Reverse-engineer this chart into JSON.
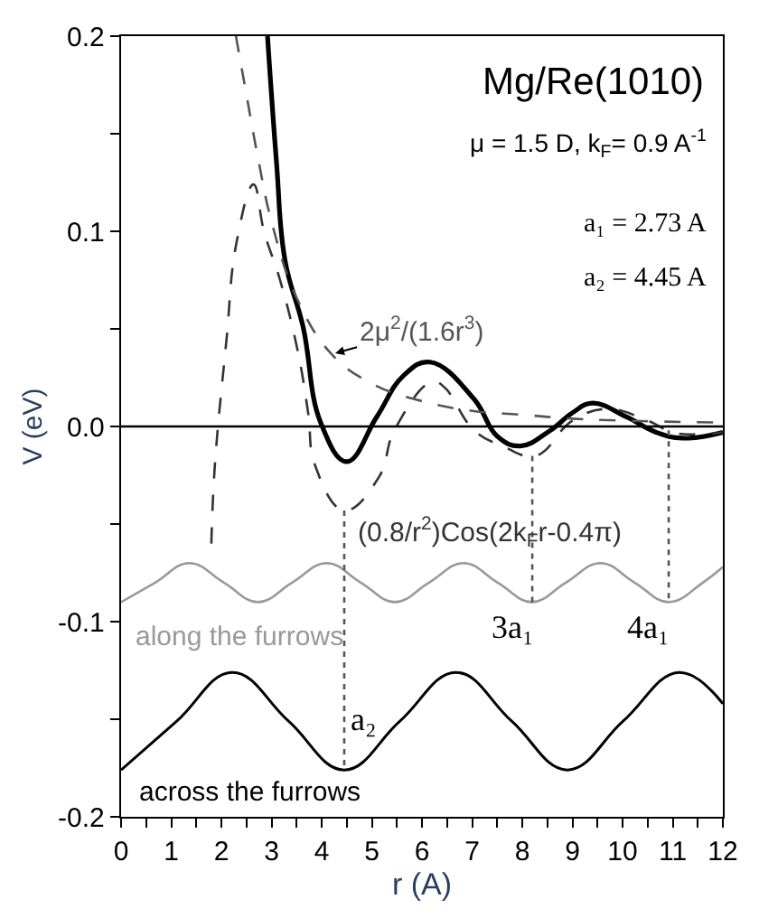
{
  "chart_data": {
    "type": "line",
    "title": "Mg/Re(1010)",
    "xlabel": "r (A)",
    "ylabel": "V (eV)",
    "xlim": [
      0,
      12
    ],
    "ylim": [
      -0.2,
      0.2
    ],
    "xticks": [
      0,
      {
        "value": 0.5,
        "label": null
      },
      1,
      {
        "value": 1.5,
        "label": null
      },
      2,
      {
        "value": 2.5,
        "label": null
      },
      3,
      {
        "value": 3.5,
        "label": null
      },
      4,
      {
        "value": 4.5,
        "label": null
      },
      5,
      {
        "value": 5.5,
        "label": null
      },
      6,
      {
        "value": 6.5,
        "label": null
      },
      7,
      {
        "value": 7.5,
        "label": null
      },
      8,
      {
        "value": 8.5,
        "label": null
      },
      9,
      {
        "value": 9.5,
        "label": null
      },
      10,
      {
        "value": 10.5,
        "label": null
      },
      11,
      {
        "value": 11.5,
        "label": null
      },
      12
    ],
    "yticks": [
      {
        "value": -0.2,
        "label": "-0.2"
      },
      {
        "value": -0.15,
        "label": null
      },
      {
        "value": -0.1,
        "label": "-0.1"
      },
      {
        "value": -0.05,
        "label": null
      },
      {
        "value": 0,
        "label": "0.0"
      },
      {
        "value": 0.05,
        "label": null
      },
      {
        "value": 0.1,
        "label": "0.1"
      },
      {
        "value": 0.15,
        "label": null
      },
      {
        "value": 0.2,
        "label": "0.2"
      }
    ],
    "legend": false,
    "marker": "none",
    "ref_lines": [
      {
        "axis": "y",
        "value": 0,
        "color": "#000000",
        "line_style": "solid"
      }
    ],
    "series": [
      {
        "color": "#000000",
        "line_style": "solid",
        "x": [
          2.92,
          3.1,
          3.27,
          3.63,
          3.98,
          4.5,
          5.1,
          5.63,
          6.16,
          7.04,
          7.5,
          7.96,
          8.56,
          9.0,
          9.4,
          10.07,
          10.67,
          11.2,
          12.0
        ],
        "values": [
          0.2,
          0.135,
          0.085,
          0.051,
          0.002,
          -0.018,
          0.005,
          0.026,
          0.033,
          0.014,
          -0.005,
          -0.01,
          -0.002,
          0.007,
          0.012,
          0.005,
          -0.003,
          -0.006,
          -0.003
        ]
      },
      {
        "name": "2μ$^{2}$/(1.6r$^{3}$)",
        "color": "#555555",
        "line_style": "dashed",
        "x": [
          2.29,
          2.5,
          2.75,
          3.0,
          3.5,
          4.2,
          5.0,
          6.0,
          7.0,
          8.0,
          9.0,
          10.0,
          12.0
        ],
        "values": [
          0.2,
          0.17,
          0.135,
          0.105,
          0.066,
          0.037,
          0.022,
          0.013,
          0.008,
          0.006,
          0.004,
          0.003,
          0.002
        ]
      },
      {
        "name": "(0.8/r$^{2}$)Cos(2k$_{F}$r-0.4π)",
        "color": "#333333",
        "line_style": "dashed",
        "x": [
          1.8,
          1.87,
          2.1,
          2.3,
          2.64,
          2.85,
          3.17,
          3.52,
          3.73,
          3.87,
          4.45,
          5.14,
          5.45,
          6.2,
          6.45,
          7.04,
          7.6,
          8.27,
          9.0,
          9.7,
          10.5,
          11.0,
          11.5,
          12.0
        ],
        "values": [
          -0.06,
          -0.02,
          0.044,
          0.094,
          0.124,
          0.1,
          0.075,
          0.039,
          0.007,
          -0.02,
          -0.043,
          -0.026,
          -0.002,
          0.023,
          0.02,
          -0.002,
          -0.01,
          -0.015,
          0.003,
          0.009,
          0.003,
          -0.003,
          -0.004,
          -0.003
        ]
      },
      {
        "name": "along the furrows",
        "color": "#999999",
        "line_style": "solid",
        "x": [
          0,
          0.68,
          1.36,
          2.05,
          2.73,
          3.41,
          4.1,
          4.78,
          5.46,
          6.14,
          6.83,
          7.51,
          8.19,
          8.87,
          9.56,
          10.24,
          10.92,
          11.6,
          12.0
        ],
        "values": [
          -0.09,
          -0.08,
          -0.07,
          -0.08,
          -0.09,
          -0.08,
          -0.07,
          -0.08,
          -0.09,
          -0.08,
          -0.07,
          -0.08,
          -0.09,
          -0.08,
          -0.07,
          -0.08,
          -0.09,
          -0.08,
          -0.072
        ]
      },
      {
        "name": "across the furrows",
        "color": "#000000",
        "line_style": "solid",
        "x": [
          0,
          1.11,
          2.22,
          3.34,
          4.45,
          5.56,
          6.68,
          7.79,
          8.9,
          10.01,
          11.12,
          12.0
        ],
        "values": [
          -0.176,
          -0.151,
          -0.126,
          -0.151,
          -0.176,
          -0.151,
          -0.126,
          -0.151,
          -0.176,
          -0.151,
          -0.126,
          -0.142
        ]
      },
      {
        "color": "#555555",
        "line_style": "dotted",
        "x": [
          4.45,
          4.45
        ],
        "values": [
          -0.043,
          -0.176
        ]
      },
      {
        "color": "#555555",
        "line_style": "dotted",
        "x": [
          8.2,
          8.2
        ],
        "values": [
          -0.015,
          -0.09
        ]
      },
      {
        "color": "#555555",
        "line_style": "dotted",
        "x": [
          10.92,
          10.92
        ],
        "values": [
          -0.002,
          -0.09
        ]
      }
    ],
    "annotations": [
      "μ = 1.5 D, k$_{F}$= 0.9 A$^{-1}$",
      "a₁ = 2.73 A",
      "a₂ = 4.45 A",
      {
        "text": "3a₁",
        "x": 8.2,
        "y": -0.09
      },
      {
        "text": "4a₁",
        "x": 10.92,
        "y": -0.09
      },
      {
        "text": "a₂",
        "x": 4.45,
        "y": -0.15
      }
    ]
  }
}
